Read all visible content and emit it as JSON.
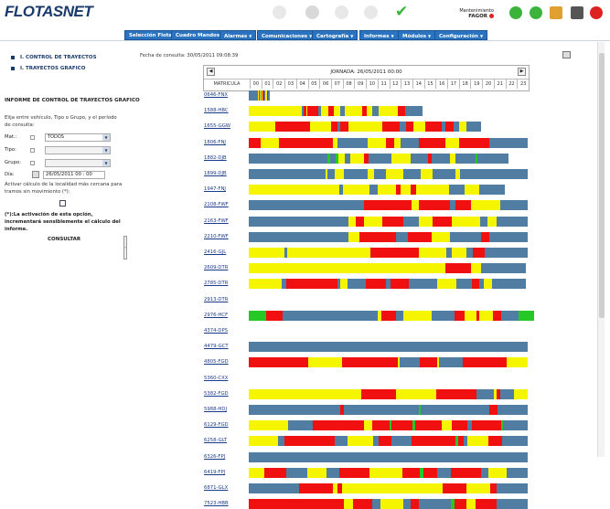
{
  "header": {
    "logo_main": "FLOTAS",
    "logo_accent": "NET",
    "maintenance_label": "Mantenimiento",
    "maintenance_company": "FAGOR"
  },
  "menu": [
    {
      "label": "Selección Flota",
      "dropdown": false
    },
    {
      "label": "Cuadro Mandos",
      "dropdown": false
    },
    {
      "label": "Alarmas",
      "dropdown": true
    },
    {
      "label": "Comunicaciones",
      "dropdown": true
    },
    {
      "label": "Cartografía",
      "dropdown": true
    },
    {
      "label": "Informes",
      "dropdown": true
    },
    {
      "label": "Módulos",
      "dropdown": true
    },
    {
      "label": "Configuración",
      "dropdown": true
    }
  ],
  "sidebar": {
    "nav": [
      "I. CONTROL DE TRAYECTOS",
      "I. TRAYECTOS GRAFICO"
    ],
    "section_title": "INFORME DE CONTROL DE TRAYECTOS GRAFICO",
    "help_text": "Elija entre vehículo, Tipo o Grupo, y el período de consulta:",
    "fields": {
      "vehicle_label": "Mat.:",
      "vehicle_value": "TODOS",
      "type_label": "Tipo:",
      "group_label": "Grupo:",
      "date_label": "Día:",
      "date_value": "26/05/2011  00 : 00"
    },
    "activate_text": "Activar cálculo de la localidad más cercana para tramos sin movimiento (*):",
    "warning_text": "(*):La activación de esta opción, incrementará sensiblemente el cálculo del informe.",
    "consult_label": "CONSULTAR"
  },
  "report": {
    "fecha_consulta": "Fecha de consulta: 30/05/2011 09:08:39",
    "jornada": "JORNADA: 26/05/2011 00:00",
    "plate_header": "MATRICULA",
    "hours": [
      "00",
      "01",
      "02",
      "03",
      "04",
      "05",
      "06",
      "07",
      "08",
      "09",
      "10",
      "11",
      "12",
      "13",
      "14",
      "15",
      "16",
      "17",
      "18",
      "19",
      "20",
      "21",
      "22",
      "23"
    ]
  },
  "colors": {
    "blue": "#527da3",
    "yellow": "#f5f500",
    "red": "#f01010",
    "green": "#25c825",
    "gray": "#c8c8c8",
    "white": "#ffffff"
  },
  "rows": [
    {
      "plate": "0646-FNX",
      "segments": [
        [
          "b",
          0.8
        ],
        [
          "y",
          0.05
        ],
        [
          "r",
          0.12
        ],
        [
          "y",
          0.06
        ],
        [
          "b",
          0.05
        ],
        [
          "y",
          0.13
        ],
        [
          "r",
          0.12
        ],
        [
          "b",
          0.07
        ],
        [
          "y",
          0.16
        ],
        [
          "r",
          0.1
        ],
        [
          "y",
          0.03
        ],
        [
          "b",
          0.11
        ]
      ]
    },
    {
      "plate": "1588-HBC",
      "segments": [
        [
          "y",
          4.6
        ],
        [
          "b",
          0.1
        ],
        [
          "r",
          0.25
        ],
        [
          "y",
          0.1
        ],
        [
          "r",
          0.9
        ],
        [
          "b",
          0.3
        ],
        [
          "y",
          0.6
        ],
        [
          "r",
          0.5
        ],
        [
          "y",
          0.5
        ],
        [
          "b",
          0.4
        ],
        [
          "y",
          1.5
        ],
        [
          "r",
          0.4
        ],
        [
          "y",
          0.5
        ],
        [
          "b",
          0.5
        ],
        [
          "y",
          1.7
        ],
        [
          "r",
          0.6
        ],
        [
          "b",
          1.5
        ]
      ]
    },
    {
      "plate": "1655-GGW",
      "segments": [
        [
          "y",
          2.3
        ],
        [
          "r",
          3.0
        ],
        [
          "y",
          1.8
        ],
        [
          "r",
          0.5
        ],
        [
          "b",
          0.3
        ],
        [
          "r",
          0.7
        ],
        [
          "y",
          2.9
        ],
        [
          "r",
          1.5
        ],
        [
          "b",
          0.5
        ],
        [
          "r",
          0.7
        ],
        [
          "y",
          1.0
        ],
        [
          "r",
          1.4
        ],
        [
          "b",
          0.3
        ],
        [
          "r",
          0.7
        ],
        [
          "b",
          0.5
        ],
        [
          "y",
          0.6
        ],
        [
          "b",
          1.3
        ]
      ]
    },
    {
      "plate": "1806-FNJ",
      "segments": [
        [
          "r",
          1.0
        ],
        [
          "y",
          1.6
        ],
        [
          "r",
          4.6
        ],
        [
          "y",
          0.4
        ],
        [
          "b",
          2.6
        ],
        [
          "y",
          1.6
        ],
        [
          "r",
          0.7
        ],
        [
          "y",
          0.6
        ],
        [
          "b",
          1.5
        ],
        [
          "r",
          2.3
        ],
        [
          "y",
          1.2
        ],
        [
          "r",
          2.6
        ],
        [
          "b",
          3.3
        ]
      ]
    },
    {
      "plate": "1882-DJB",
      "segments": [
        [
          "b",
          6.8
        ],
        [
          "g",
          0.2
        ],
        [
          "b",
          0.5
        ],
        [
          "g",
          0.2
        ],
        [
          "y",
          0.6
        ],
        [
          "b",
          0.4
        ],
        [
          "y",
          1.2
        ],
        [
          "r",
          0.4
        ],
        [
          "b",
          2.0
        ],
        [
          "y",
          1.6
        ],
        [
          "b",
          1.5
        ],
        [
          "r",
          0.3
        ],
        [
          "b",
          1.6
        ],
        [
          "y",
          0.5
        ],
        [
          "b",
          1.7
        ],
        [
          "g",
          0.2
        ],
        [
          "b",
          2.6
        ]
      ]
    },
    {
      "plate": "1899-DJB",
      "segments": [
        [
          "b",
          6.6
        ],
        [
          "y",
          0.2
        ],
        [
          "b",
          0.6
        ],
        [
          "y",
          0.8
        ],
        [
          "b",
          2.0
        ],
        [
          "y",
          0.6
        ],
        [
          "b",
          1.0
        ],
        [
          "y",
          1.5
        ],
        [
          "b",
          1.5
        ],
        [
          "y",
          1.0
        ],
        [
          "b",
          2.0
        ],
        [
          "y",
          0.4
        ],
        [
          "b",
          5.8
        ]
      ]
    },
    {
      "plate": "1947-FNJ",
      "segments": [
        [
          "y",
          7.8
        ],
        [
          "b",
          0.3
        ],
        [
          "y",
          2.3
        ],
        [
          "b",
          0.7
        ],
        [
          "y",
          1.6
        ],
        [
          "r",
          0.4
        ],
        [
          "y",
          0.8
        ],
        [
          "r",
          0.5
        ],
        [
          "y",
          2.8
        ],
        [
          "b",
          1.4
        ],
        [
          "y",
          1.2
        ],
        [
          "b",
          2.2
        ]
      ]
    },
    {
      "plate": "2108-FWF",
      "segments": [
        [
          "b",
          9.9
        ],
        [
          "r",
          4.1
        ],
        [
          "y",
          0.6
        ],
        [
          "r",
          2.7
        ],
        [
          "b",
          0.5
        ],
        [
          "r",
          1.3
        ],
        [
          "y",
          2.5
        ],
        [
          "b",
          2.4
        ]
      ]
    },
    {
      "plate": "2163-FWF",
      "segments": [
        [
          "b",
          8.6
        ],
        [
          "y",
          0.6
        ],
        [
          "r",
          0.7
        ],
        [
          "y",
          1.6
        ],
        [
          "r",
          1.8
        ],
        [
          "b",
          1.3
        ],
        [
          "y",
          1.2
        ],
        [
          "r",
          1.7
        ],
        [
          "y",
          2.4
        ],
        [
          "b",
          0.6
        ],
        [
          "y",
          0.8
        ],
        [
          "b",
          2.7
        ]
      ]
    },
    {
      "plate": "2210-FWF",
      "segments": [
        [
          "b",
          8.6
        ],
        [
          "y",
          0.9
        ],
        [
          "r",
          3.2
        ],
        [
          "b",
          1.0
        ],
        [
          "r",
          2.0
        ],
        [
          "y",
          1.6
        ],
        [
          "b",
          2.7
        ],
        [
          "r",
          0.7
        ],
        [
          "b",
          3.3
        ]
      ]
    },
    {
      "plate": "2416-GJL",
      "segments": [
        [
          "y",
          3.1
        ],
        [
          "b",
          0.2
        ],
        [
          "y",
          7.2
        ],
        [
          "r",
          4.1
        ],
        [
          "y",
          2.4
        ],
        [
          "b",
          0.5
        ],
        [
          "y",
          1.2
        ],
        [
          "b",
          0.6
        ],
        [
          "r",
          1.0
        ],
        [
          "b",
          3.7
        ]
      ]
    },
    {
      "plate": "2609-DTR",
      "segments": [
        [
          "y",
          16.9
        ],
        [
          "r",
          2.2
        ],
        [
          "y",
          0.9
        ],
        [
          "b",
          3.8
        ]
      ]
    },
    {
      "plate": "2785-DTR",
      "segments": [
        [
          "y",
          2.8
        ],
        [
          "b",
          0.4
        ],
        [
          "r",
          4.4
        ],
        [
          "b",
          0.3
        ],
        [
          "y",
          0.6
        ],
        [
          "b",
          1.6
        ],
        [
          "r",
          1.7
        ],
        [
          "b",
          0.4
        ],
        [
          "r",
          1.6
        ],
        [
          "b",
          2.4
        ],
        [
          "y",
          1.7
        ],
        [
          "b",
          1.3
        ],
        [
          "r",
          0.6
        ],
        [
          "b",
          0.4
        ],
        [
          "y",
          0.7
        ],
        [
          "b",
          2.9
        ]
      ]
    },
    {
      "plate": "2913-DTR",
      "segments": [
        [
          "w",
          24.0
        ]
      ]
    },
    {
      "plate": "2976-HCF",
      "segments": [
        [
          "g",
          1.5
        ],
        [
          "r",
          1.4
        ],
        [
          "b",
          8.2
        ],
        [
          "y",
          0.3
        ],
        [
          "r",
          1.3
        ],
        [
          "b",
          0.6
        ],
        [
          "y",
          2.4
        ],
        [
          "b",
          2.0
        ],
        [
          "r",
          0.9
        ],
        [
          "y",
          1.0
        ],
        [
          "r",
          0.2
        ],
        [
          "y",
          1.2
        ],
        [
          "r",
          0.7
        ],
        [
          "b",
          1.5
        ],
        [
          "g",
          1.3
        ]
      ]
    },
    {
      "plate": "4374-DPS",
      "segments": [
        [
          "w",
          24.0
        ]
      ]
    },
    {
      "plate": "4479-GCT",
      "segments": [
        [
          "b",
          24.0
        ]
      ]
    },
    {
      "plate": "4805-FGD",
      "segments": [
        [
          "r",
          5.1
        ],
        [
          "y",
          2.9
        ],
        [
          "r",
          4.8
        ],
        [
          "y",
          0.2
        ],
        [
          "b",
          1.7
        ],
        [
          "r",
          1.5
        ],
        [
          "y",
          0.2
        ],
        [
          "b",
          2.0
        ],
        [
          "r",
          3.8
        ],
        [
          "y",
          1.8
        ]
      ]
    },
    {
      "plate": "5360-CXX",
      "segments": [
        [
          "w",
          24.0
        ]
      ]
    },
    {
      "plate": "5382-FGD",
      "segments": [
        [
          "y",
          9.7
        ],
        [
          "r",
          3.0
        ],
        [
          "y",
          3.4
        ],
        [
          "r",
          3.5
        ],
        [
          "b",
          1.5
        ],
        [
          "y",
          0.2
        ],
        [
          "r",
          0.3
        ],
        [
          "b",
          1.2
        ],
        [
          "y",
          1.2
        ]
      ]
    },
    {
      "plate": "5988-HDJ",
      "segments": [
        [
          "b",
          7.9
        ],
        [
          "r",
          0.3
        ],
        [
          "b",
          6.4
        ],
        [
          "g",
          0.2
        ],
        [
          "b",
          5.9
        ],
        [
          "r",
          0.7
        ],
        [
          "b",
          2.6
        ]
      ]
    },
    {
      "plate": "6129-FGD",
      "segments": [
        [
          "y",
          3.4
        ],
        [
          "b",
          2.1
        ],
        [
          "r",
          4.4
        ],
        [
          "y",
          0.7
        ],
        [
          "r",
          1.5
        ],
        [
          "g",
          0.2
        ],
        [
          "r",
          1.8
        ],
        [
          "g",
          0.2
        ],
        [
          "r",
          2.3
        ],
        [
          "y",
          0.9
        ],
        [
          "r",
          1.3
        ],
        [
          "b",
          0.4
        ],
        [
          "r",
          2.5
        ],
        [
          "g",
          0.2
        ],
        [
          "b",
          2.1
        ]
      ]
    },
    {
      "plate": "6258-GLT",
      "segments": [
        [
          "y",
          2.5
        ],
        [
          "b",
          0.6
        ],
        [
          "r",
          4.3
        ],
        [
          "b",
          1.1
        ],
        [
          "y",
          2.2
        ],
        [
          "b",
          0.5
        ],
        [
          "r",
          1.1
        ],
        [
          "b",
          1.7
        ],
        [
          "r",
          3.8
        ],
        [
          "g",
          0.2
        ],
        [
          "r",
          0.5
        ],
        [
          "b",
          0.3
        ],
        [
          "y",
          1.8
        ],
        [
          "r",
          1.2
        ],
        [
          "b",
          2.2
        ]
      ]
    },
    {
      "plate": "6326-FPJ",
      "segments": [
        [
          "b",
          24.0
        ]
      ]
    },
    {
      "plate": "6419-FPJ",
      "segments": [
        [
          "y",
          1.3
        ],
        [
          "r",
          1.9
        ],
        [
          "b",
          1.8
        ],
        [
          "y",
          1.7
        ],
        [
          "b",
          1.1
        ],
        [
          "r",
          2.6
        ],
        [
          "y",
          2.8
        ],
        [
          "r",
          1.5
        ],
        [
          "g",
          0.3
        ],
        [
          "r",
          1.2
        ],
        [
          "b",
          1.2
        ],
        [
          "r",
          2.6
        ],
        [
          "b",
          0.6
        ],
        [
          "y",
          1.6
        ],
        [
          "b",
          1.8
        ]
      ]
    },
    {
      "plate": "6871-GLX",
      "segments": [
        [
          "b",
          4.3
        ],
        [
          "r",
          2.9
        ],
        [
          "y",
          0.4
        ],
        [
          "r",
          0.4
        ],
        [
          "y",
          8.7
        ],
        [
          "r",
          2.0
        ],
        [
          "y",
          2.1
        ],
        [
          "r",
          0.5
        ],
        [
          "b",
          2.7
        ]
      ]
    },
    {
      "plate": "7523-HBB",
      "segments": [
        [
          "r",
          8.2
        ],
        [
          "y",
          0.8
        ],
        [
          "r",
          1.6
        ],
        [
          "b",
          0.7
        ],
        [
          "y",
          2.0
        ],
        [
          "b",
          0.6
        ],
        [
          "r",
          0.7
        ],
        [
          "b",
          2.8
        ],
        [
          "g",
          0.3
        ],
        [
          "r",
          1.0
        ],
        [
          "y",
          0.8
        ],
        [
          "r",
          1.8
        ],
        [
          "b",
          2.7
        ]
      ]
    }
  ]
}
